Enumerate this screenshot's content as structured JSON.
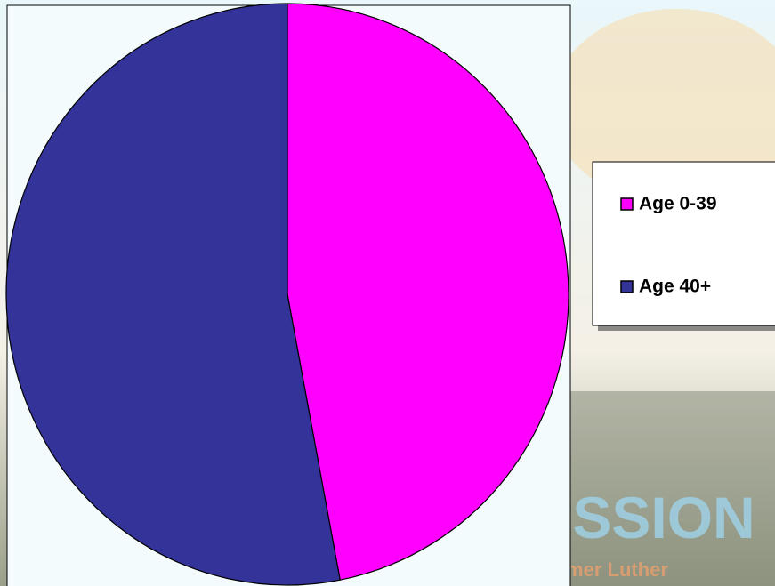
{
  "chart_data": {
    "type": "pie",
    "categories": [
      "Age 0-39",
      "Age 40+"
    ],
    "values": [
      47,
      53
    ],
    "colors": [
      "#ff00ff",
      "#333399"
    ],
    "legend": "right"
  },
  "background": {
    "texts": [
      "MISSION",
      "Redeemer Luther"
    ]
  }
}
